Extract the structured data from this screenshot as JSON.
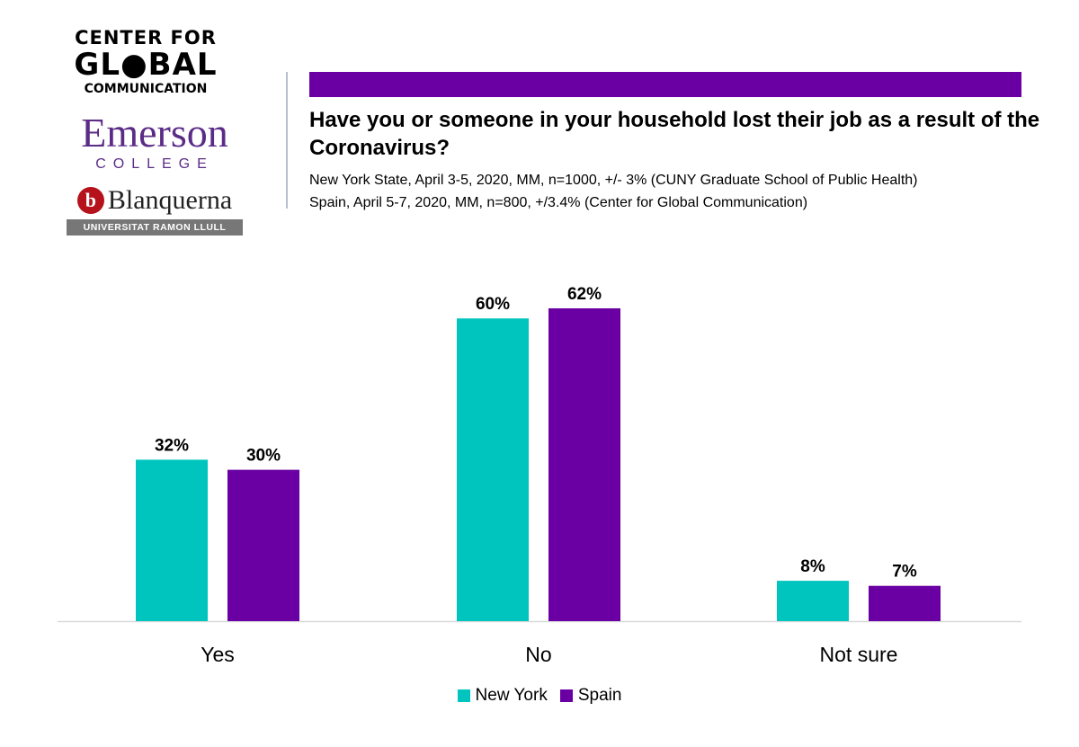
{
  "logos": {
    "cgc_line1": "CENTER FOR",
    "cgc_line2": "GL●BAL",
    "cgc_line3": "COMMUNICATION",
    "emerson_name": "Emerson",
    "emerson_college": "COLLEGE",
    "blanquerna_mark": "b",
    "blanquerna_name": "Blanquerna",
    "blanquerna_sub": "UNIVERSITAT RAMON LLULL"
  },
  "colors": {
    "new_york": "#00c5be",
    "spain": "#6a00a3",
    "header_bar": "#6a00a3",
    "emerson": "#5b2c86",
    "blanquerna": "#b5121b"
  },
  "header": {
    "subtitle_1": "New York State, April 3-5, 2020, MM, n=1000, +/- 3% (CUNY Graduate School of Public Health)",
    "subtitle_2": "Spain, April 5-7, 2020, MM, n=800, +/3.4% (Center for Global Communication)"
  },
  "chart_data": {
    "type": "bar",
    "title": "Have you or someone in your household lost their job as a result of the Coronavirus?",
    "categories": [
      "Yes",
      "No",
      "Not sure"
    ],
    "series": [
      {
        "name": "New York",
        "values": [
          32,
          60,
          8
        ],
        "labels": [
          "32%",
          "60%",
          "8%"
        ]
      },
      {
        "name": "Spain",
        "values": [
          30,
          62,
          7
        ],
        "labels": [
          "30%",
          "62%",
          "7%"
        ]
      }
    ],
    "ylim": [
      0,
      62
    ],
    "grid": false,
    "legend": "bottom-center"
  }
}
